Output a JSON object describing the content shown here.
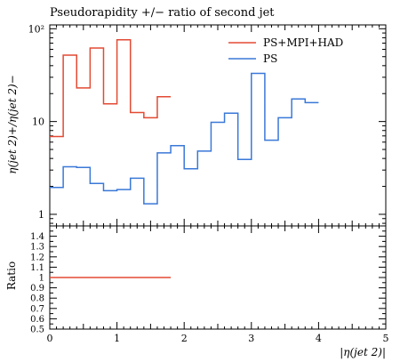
{
  "title": "Pseudorapidity +/− ratio of second jet",
  "chart_data": [
    {
      "type": "line",
      "drawstyle": "steps",
      "title": "Pseudorapidity +/− ratio of second jet",
      "ylabel": "η(jet 2)+/η(jet 2)−",
      "yscale": "log",
      "xlim": [
        0,
        5
      ],
      "ylim": [
        0.75,
        110
      ],
      "yticks": [
        1,
        10,
        100
      ],
      "ytick_labels": [
        "1",
        "10",
        "10²"
      ],
      "legend_position": "top-right",
      "series": [
        {
          "name": "PS+MPI+HAD",
          "color": "#e34a33",
          "bin_edges": [
            0,
            0.2,
            0.4,
            0.6,
            0.8,
            1.0,
            1.2,
            1.4,
            1.6,
            1.8
          ],
          "values": [
            6.9,
            52,
            23,
            62,
            15.5,
            76,
            12.5,
            11,
            18.5
          ]
        },
        {
          "name": "PS",
          "color": "#3a78d8",
          "bin_edges": [
            0,
            0.2,
            0.4,
            0.6,
            0.8,
            1.0,
            1.2,
            1.4,
            1.6,
            1.8,
            2.0,
            2.2,
            2.4,
            2.6,
            2.8,
            3.0,
            3.2,
            3.4,
            3.6,
            3.8,
            4.0
          ],
          "values": [
            1.95,
            3.25,
            3.2,
            2.15,
            1.8,
            1.85,
            2.45,
            1.3,
            4.6,
            5.5,
            3.1,
            4.8,
            9.8,
            12.3,
            3.9,
            33,
            6.3,
            11,
            17.5,
            16
          ]
        }
      ]
    },
    {
      "type": "line",
      "drawstyle": "steps",
      "ylabel": "Ratio",
      "xlabel": "|η(jet 2)|",
      "xlim": [
        0,
        5
      ],
      "ylim": [
        0.5,
        1.5
      ],
      "xticks": [
        0,
        1,
        2,
        3,
        4,
        5
      ],
      "xtick_labels": [
        "0",
        "1",
        "2",
        "3",
        "4",
        "5"
      ],
      "yticks": [
        0.5,
        0.6,
        0.7,
        0.8,
        0.9,
        1.0,
        1.1,
        1.2,
        1.3,
        1.4
      ],
      "ytick_labels": [
        "0.5",
        "0.6",
        "0.7",
        "0.8",
        "0.9",
        "1",
        "1.1",
        "1.2",
        "1.3",
        "1.4"
      ],
      "series": [
        {
          "name": "PS+MPI+HAD",
          "color": "#e34a33",
          "bin_edges": [
            0,
            1.8
          ],
          "values": [
            1.0
          ]
        }
      ]
    }
  ]
}
